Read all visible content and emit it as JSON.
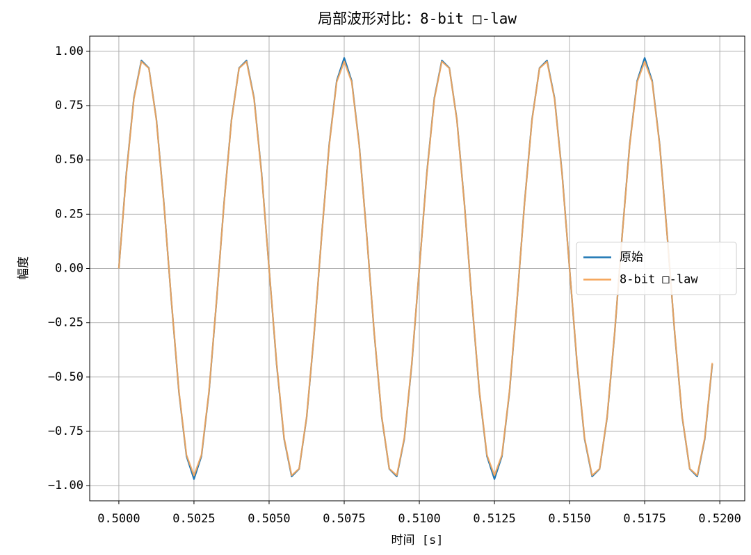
{
  "chart_data": {
    "type": "line",
    "title": "局部波形对比：8-bit □-law",
    "xlabel": "时间 [s]",
    "ylabel": "幅度",
    "x": [
      0.5,
      0.50025,
      0.5005,
      0.50075,
      0.501,
      0.50125,
      0.5015,
      0.50175,
      0.502,
      0.50225,
      0.5025,
      0.50275,
      0.503,
      0.50325,
      0.5035,
      0.50375,
      0.504,
      0.50425,
      0.5045,
      0.50475,
      0.505,
      0.50525,
      0.5055,
      0.50575,
      0.506,
      0.50625,
      0.5065,
      0.50675,
      0.507,
      0.50725,
      0.5075,
      0.50775,
      0.508,
      0.50825,
      0.5085,
      0.50875,
      0.509,
      0.50925,
      0.5095,
      0.50975,
      0.51,
      0.51025,
      0.5105,
      0.51075,
      0.511,
      0.51125,
      0.5115,
      0.51175,
      0.512,
      0.51225,
      0.5125,
      0.51275,
      0.513,
      0.51325,
      0.5135,
      0.51375,
      0.514,
      0.51425,
      0.5145,
      0.51475,
      0.515,
      0.51525,
      0.5155,
      0.51575,
      0.516,
      0.51625,
      0.5165,
      0.51675,
      0.517,
      0.51725,
      0.5175,
      0.51775,
      0.518,
      0.51825,
      0.5185,
      0.51875,
      0.519,
      0.51925,
      0.5195,
      0.51975
    ],
    "series": [
      {
        "name": "原始",
        "color": "#1f77b4",
        "values": [
          0,
          0.44,
          0.785,
          0.958,
          0.923,
          0.686,
          0.3,
          -0.152,
          -0.57,
          -0.864,
          -0.97,
          -0.864,
          -0.57,
          -0.152,
          0.3,
          0.686,
          0.923,
          0.958,
          0.785,
          0.44,
          0,
          -0.44,
          -0.785,
          -0.958,
          -0.923,
          -0.686,
          -0.3,
          0.152,
          0.57,
          0.864,
          0.97,
          0.864,
          0.57,
          0.152,
          -0.3,
          -0.686,
          -0.923,
          -0.958,
          -0.785,
          -0.44,
          0,
          0.44,
          0.785,
          0.958,
          0.923,
          0.686,
          0.3,
          -0.152,
          -0.57,
          -0.864,
          -0.97,
          -0.864,
          -0.57,
          -0.152,
          0.3,
          0.686,
          0.923,
          0.958,
          0.785,
          0.44,
          0,
          -0.44,
          -0.785,
          -0.958,
          -0.923,
          -0.686,
          -0.3,
          0.152,
          0.57,
          0.864,
          0.97,
          0.864,
          0.57,
          0.152,
          -0.3,
          -0.686,
          -0.923,
          -0.958,
          -0.785,
          -0.44
        ]
      },
      {
        "name": "8-bit □-law",
        "color": "#f5a55a",
        "values": [
          0,
          0.435,
          0.781,
          0.953,
          0.922,
          0.683,
          0.297,
          -0.15,
          -0.566,
          -0.859,
          -0.953,
          -0.859,
          -0.566,
          -0.15,
          0.297,
          0.683,
          0.922,
          0.953,
          0.781,
          0.435,
          0,
          -0.435,
          -0.781,
          -0.953,
          -0.922,
          -0.683,
          -0.297,
          0.15,
          0.566,
          0.859,
          0.953,
          0.859,
          0.566,
          0.15,
          -0.297,
          -0.683,
          -0.922,
          -0.953,
          -0.781,
          -0.435,
          0,
          0.435,
          0.781,
          0.953,
          0.922,
          0.683,
          0.297,
          -0.15,
          -0.566,
          -0.859,
          -0.953,
          -0.859,
          -0.566,
          -0.15,
          0.297,
          0.683,
          0.922,
          0.953,
          0.781,
          0.435,
          0,
          -0.435,
          -0.781,
          -0.953,
          -0.922,
          -0.683,
          -0.297,
          0.15,
          0.566,
          0.859,
          0.953,
          0.859,
          0.566,
          0.15,
          -0.297,
          -0.683,
          -0.922,
          -0.953,
          -0.781,
          -0.435
        ]
      }
    ],
    "xlim": [
      0.49903,
      0.52083
    ],
    "ylim": [
      -1.07,
      1.07
    ],
    "xticks": [
      {
        "value": 0.5,
        "label": "0.5000"
      },
      {
        "value": 0.5025,
        "label": "0.5025"
      },
      {
        "value": 0.505,
        "label": "0.5050"
      },
      {
        "value": 0.5075,
        "label": "0.5075"
      },
      {
        "value": 0.51,
        "label": "0.5100"
      },
      {
        "value": 0.5125,
        "label": "0.5125"
      },
      {
        "value": 0.515,
        "label": "0.5150"
      },
      {
        "value": 0.5175,
        "label": "0.5175"
      },
      {
        "value": 0.52,
        "label": "0.5200"
      }
    ],
    "yticks": [
      {
        "value": -1,
        "label": "−1.00"
      },
      {
        "value": -0.75,
        "label": "−0.75"
      },
      {
        "value": -0.5,
        "label": "−0.50"
      },
      {
        "value": -0.25,
        "label": "−0.25"
      },
      {
        "value": 0,
        "label": "0.00"
      },
      {
        "value": 0.25,
        "label": "0.25"
      },
      {
        "value": 0.5,
        "label": "0.50"
      },
      {
        "value": 0.75,
        "label": "0.75"
      },
      {
        "value": 1,
        "label": "1.00"
      }
    ],
    "grid": true,
    "legend": "right"
  }
}
